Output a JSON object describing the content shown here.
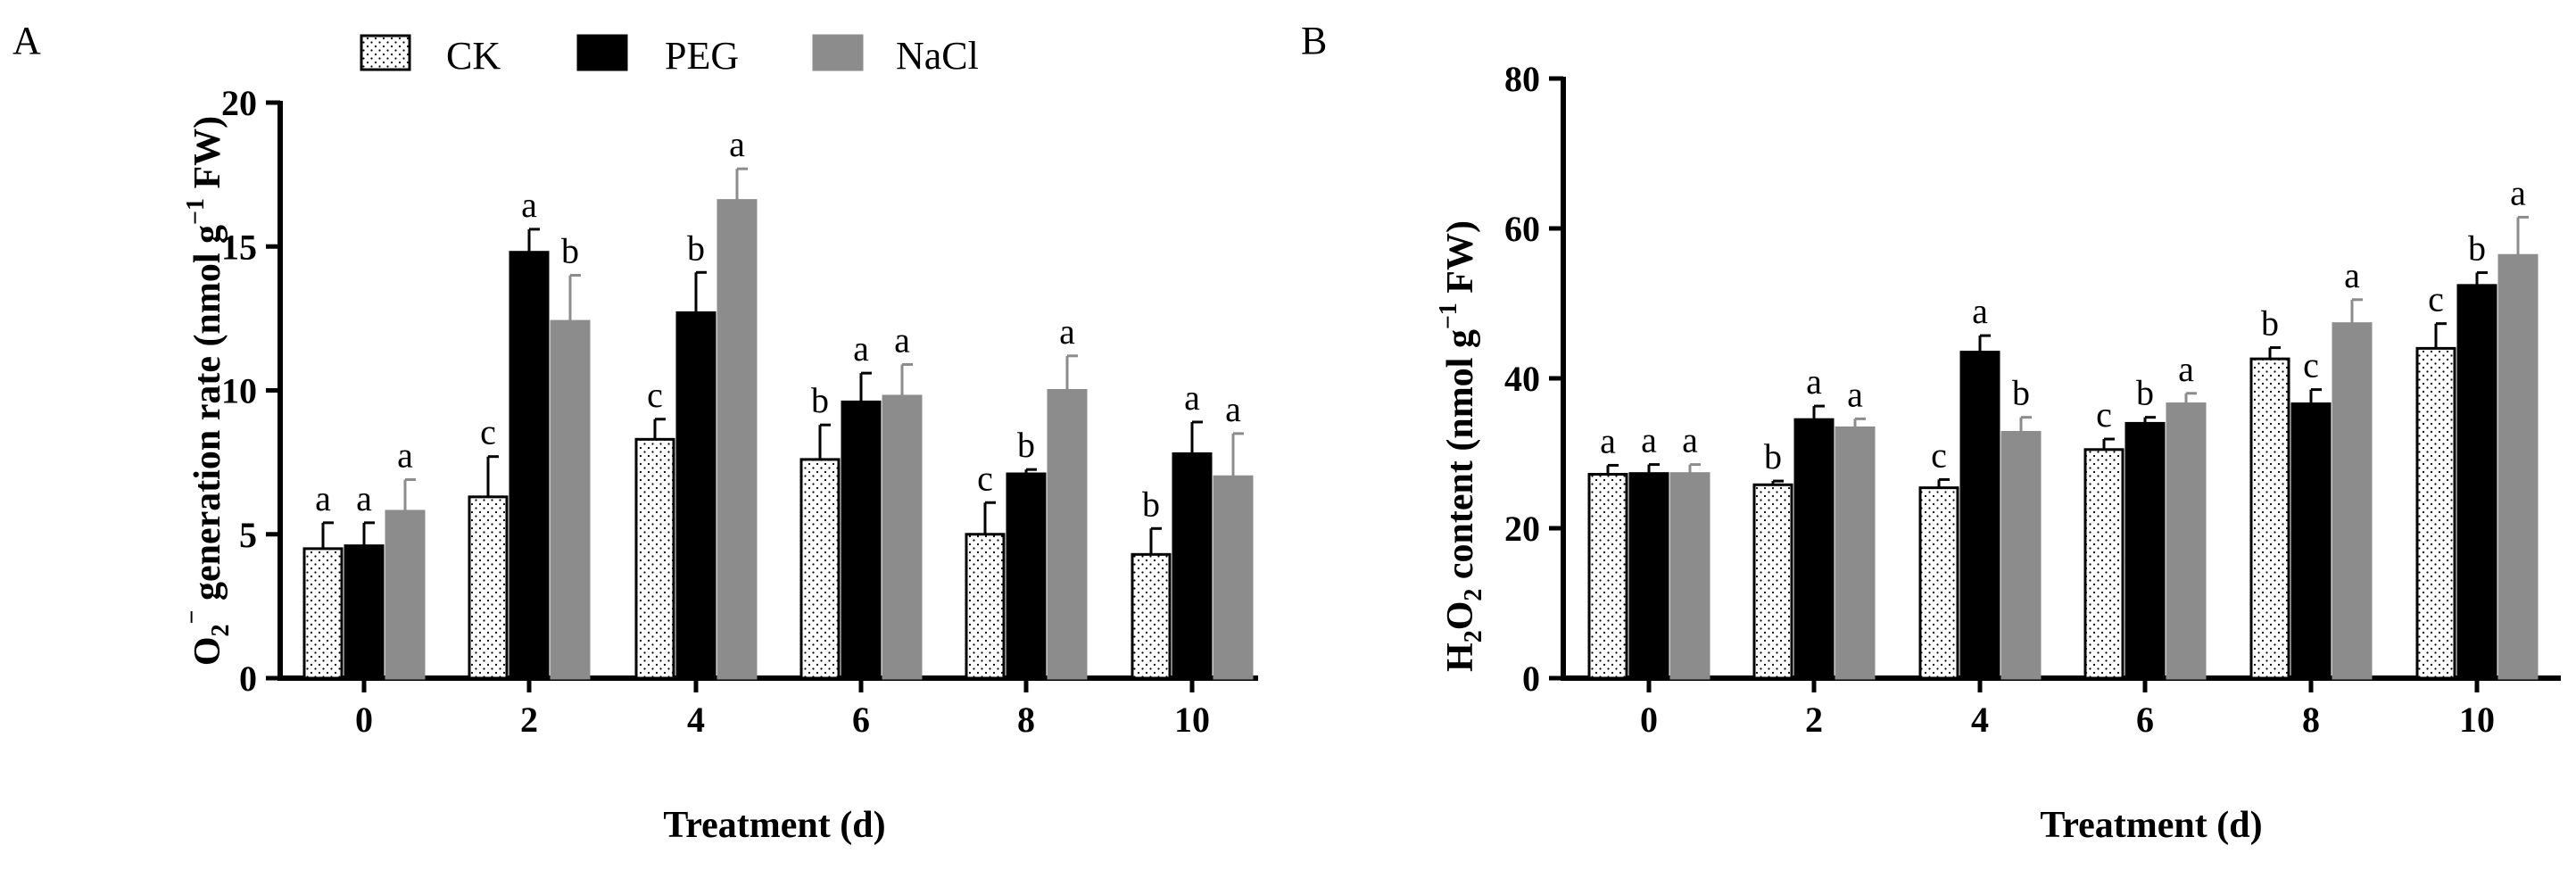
{
  "colors": {
    "CK": "#ffffff",
    "PEG": "#000000",
    "NaCl": "#8c8c8c"
  },
  "legend": [
    {
      "label": "CK",
      "pattern": "dots"
    },
    {
      "label": "PEG",
      "pattern": "solid-black"
    },
    {
      "label": "NaCl",
      "pattern": "solid-gray"
    }
  ],
  "chart_data": [
    {
      "panel": "A",
      "type": "bar",
      "xlabel": "Treatment (d)",
      "ylabel_parts": {
        "main": "O",
        "sub": "2",
        "sup": "−",
        "rest": " generation rate (nmol g",
        "sup2": "−1",
        "end": " FW)"
      },
      "categories": [
        "0",
        "2",
        "4",
        "6",
        "8",
        "10"
      ],
      "ylim": [
        0,
        20
      ],
      "yticks": [
        "0",
        "5",
        "10",
        "15",
        "20"
      ],
      "series": [
        {
          "name": "CK",
          "values": [
            4.5,
            6.3,
            8.3,
            7.6,
            5.0,
            4.3
          ],
          "errors": [
            0.9,
            1.4,
            0.7,
            1.2,
            1.1,
            0.9
          ],
          "letters": [
            "a",
            "c",
            "c",
            "b",
            "c",
            "b"
          ]
        },
        {
          "name": "PEG",
          "values": [
            4.6,
            14.8,
            12.7,
            9.6,
            7.1,
            7.8
          ],
          "errors": [
            0.8,
            0.8,
            1.4,
            1.0,
            0.15,
            1.1
          ],
          "letters": [
            "a",
            "a",
            "b",
            "a",
            "b",
            "a"
          ]
        },
        {
          "name": "NaCl",
          "values": [
            5.8,
            12.4,
            16.6,
            9.8,
            10.0,
            7.0
          ],
          "errors": [
            1.1,
            1.6,
            1.1,
            1.1,
            1.2,
            1.5
          ],
          "letters": [
            "a",
            "b",
            "a",
            "a",
            "a",
            "a"
          ]
        }
      ]
    },
    {
      "panel": "B",
      "type": "bar",
      "xlabel": "Treatment (d)",
      "ylabel_parts": {
        "main": "H",
        "sub": "2",
        "main2": "O",
        "sub2": "2",
        "rest": " content (nmol g",
        "sup2": "−1",
        "end": " FW)"
      },
      "categories": [
        "0",
        "2",
        "4",
        "6",
        "8",
        "10"
      ],
      "ylim": [
        0,
        80
      ],
      "yticks": [
        "0",
        "20",
        "40",
        "60",
        "80"
      ],
      "series": [
        {
          "name": "CK",
          "values": [
            27.2,
            25.8,
            25.4,
            30.5,
            42.6,
            44.0
          ],
          "errors": [
            1.2,
            0.5,
            1.1,
            1.4,
            1.5,
            3.3
          ],
          "letters": [
            "a",
            "b",
            "c",
            "c",
            "b",
            "c"
          ]
        },
        {
          "name": "PEG",
          "values": [
            27.3,
            34.5,
            43.5,
            34.0,
            36.6,
            52.4
          ],
          "errors": [
            1.2,
            1.8,
            2.2,
            0.8,
            1.9,
            1.7
          ],
          "letters": [
            "a",
            "a",
            "a",
            "b",
            "c",
            "b"
          ]
        },
        {
          "name": "NaCl",
          "values": [
            27.3,
            33.4,
            32.8,
            36.6,
            47.3,
            56.4
          ],
          "errors": [
            1.2,
            1.2,
            2.0,
            1.4,
            3.2,
            5.1
          ],
          "letters": [
            "a",
            "a",
            "b",
            "a",
            "a",
            "a"
          ]
        }
      ]
    }
  ]
}
